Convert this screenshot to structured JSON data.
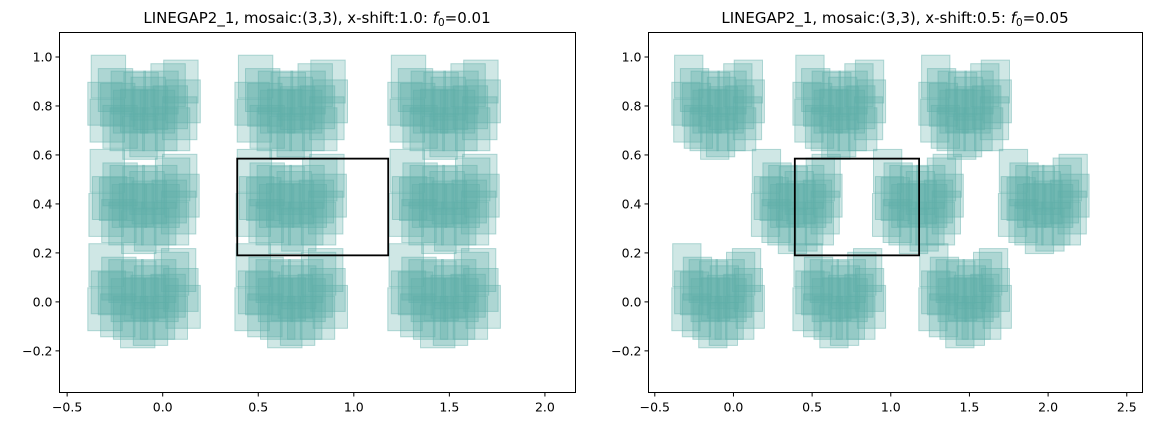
{
  "figure": {
    "panels": [
      {
        "title_prefix": "LINEGAP2_1, mosaic:(3,3), x-shift:1.0: ",
        "title_fsym": "f",
        "title_sub": "0",
        "title_suffix": "=0.01"
      },
      {
        "title_prefix": "LINEGAP2_1, mosaic:(3,3), x-shift:0.5: ",
        "title_fsym": "f",
        "title_sub": "0",
        "title_suffix": "=0.05"
      }
    ]
  },
  "chart_data": [
    {
      "type": "scatter",
      "title": "LINEGAP2_1, mosaic:(3,3), x-shift:1.0: f0=0.01",
      "xlabel": "",
      "ylabel": "",
      "xlim": [
        -0.54,
        2.16
      ],
      "ylim": [
        -0.37,
        1.1
      ],
      "xticks": [
        -0.5,
        0.0,
        0.5,
        1.0,
        1.5,
        2.0
      ],
      "xtick_labels": [
        "−0.5",
        "0.0",
        "0.5",
        "1.0",
        "1.5",
        "2.0"
      ],
      "yticks": [
        -0.2,
        0.0,
        0.2,
        0.4,
        0.6,
        0.8,
        1.0
      ],
      "ytick_labels": [
        "−0.2",
        "0.0",
        "0.2",
        "0.4",
        "0.6",
        "0.8",
        "1.0"
      ],
      "mosaic": [
        3,
        3
      ],
      "x_shift": 1.0,
      "f0": 0.01,
      "mosaic_x_starts": [
        -0.38,
        0.39,
        1.19
      ],
      "mosaic_row_centers": [
        0.025,
        0.41,
        0.795
      ],
      "row_x_shift": [
        0.0,
        0.0,
        0.0
      ],
      "detector_width": 0.18,
      "detector_height": 0.175,
      "footprint_color": "#5fb0aa",
      "rectangle": {
        "x0": 0.39,
        "x1": 1.18,
        "y0": 0.19,
        "y1": 0.585,
        "color": "#000000"
      }
    },
    {
      "type": "scatter",
      "title": "LINEGAP2_1, mosaic:(3,3), x-shift:0.5: f0=0.05",
      "xlabel": "",
      "ylabel": "",
      "xlim": [
        -0.54,
        2.6
      ],
      "ylim": [
        -0.37,
        1.1
      ],
      "xticks": [
        -0.5,
        0.0,
        0.5,
        1.0,
        1.5,
        2.0,
        2.5
      ],
      "xtick_labels": [
        "−0.5",
        "0.0",
        "0.5",
        "1.0",
        "1.5",
        "2.0",
        "2.5"
      ],
      "yticks": [
        -0.2,
        0.0,
        0.2,
        0.4,
        0.6,
        0.8,
        1.0
      ],
      "ytick_labels": [
        "−0.2",
        "0.0",
        "0.2",
        "0.4",
        "0.6",
        "0.8",
        "1.0"
      ],
      "mosaic": [
        3,
        3
      ],
      "x_shift": 0.5,
      "f0": 0.05,
      "mosaic_x_starts": [
        -0.38,
        0.39,
        1.19
      ],
      "mosaic_row_centers": [
        0.025,
        0.41,
        0.795
      ],
      "row_x_shift": [
        0.0,
        0.5,
        0.0
      ],
      "detector_width": 0.18,
      "detector_height": 0.175,
      "footprint_color": "#5fb0aa",
      "rectangle": {
        "x0": 0.39,
        "x1": 1.18,
        "y0": 0.19,
        "y1": 0.585,
        "color": "#000000"
      }
    }
  ]
}
